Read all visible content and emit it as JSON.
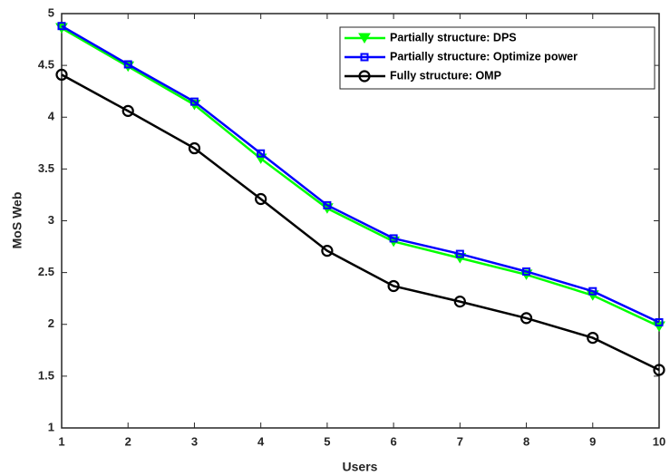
{
  "chart_data": {
    "type": "line",
    "x_label": "Users",
    "y_label": "MoS Web",
    "x": [
      1,
      2,
      3,
      4,
      5,
      6,
      7,
      8,
      9,
      10
    ],
    "xlim": [
      1,
      10
    ],
    "xticks": [
      1,
      2,
      3,
      4,
      5,
      6,
      7,
      8,
      9,
      10
    ],
    "ylim": [
      1,
      5
    ],
    "yticks": [
      1,
      1.5,
      2,
      2.5,
      3,
      3.5,
      4,
      4.5,
      5
    ],
    "legend": "upper right",
    "grid": false,
    "series": [
      {
        "name": "Partially structure: DPS",
        "color": "#00ff00",
        "marker": "triangle-down",
        "values": [
          4.86,
          4.49,
          4.12,
          3.6,
          3.12,
          2.8,
          2.64,
          2.48,
          2.28,
          1.98
        ]
      },
      {
        "name": "Partially structure: Optimize power",
        "color": "#0000ff",
        "marker": "square",
        "values": [
          4.88,
          4.51,
          4.15,
          3.65,
          3.15,
          2.83,
          2.68,
          2.51,
          2.32,
          2.02
        ]
      },
      {
        "name": "Fully structure: OMP",
        "color": "#000000",
        "marker": "circle",
        "values": [
          4.41,
          4.06,
          3.7,
          3.21,
          2.71,
          2.37,
          2.22,
          2.06,
          1.87,
          1.56
        ]
      }
    ]
  }
}
